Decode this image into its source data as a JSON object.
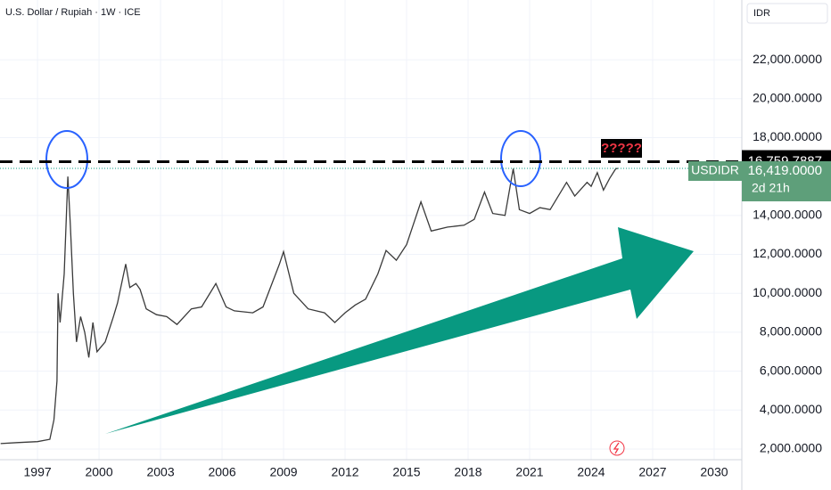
{
  "chart_data": {
    "type": "line",
    "title": "U.S. Dollar / Rupiah · 1W · ICE",
    "currency": "IDR",
    "grid": true,
    "xlim": [
      1995.17,
      2031.35
    ],
    "ylim": [
      1450,
      25070
    ],
    "xticks": [
      1997,
      2000,
      2003,
      2006,
      2009,
      2012,
      2015,
      2018,
      2021,
      2024,
      2027,
      2030
    ],
    "yticks": [
      {
        "value": 2000,
        "label": "2,000.0000"
      },
      {
        "value": 4000,
        "label": "4,000.0000"
      },
      {
        "value": 6000,
        "label": "6,000.0000"
      },
      {
        "value": 8000,
        "label": "8,000.0000"
      },
      {
        "value": 10000,
        "label": "10,000.0000"
      },
      {
        "value": 12000,
        "label": "12,000.0000"
      },
      {
        "value": 14000,
        "label": "14,000.0000"
      },
      {
        "value": 18000,
        "label": "18,000.0000"
      },
      {
        "value": 20000,
        "label": "20,000.0000"
      },
      {
        "value": 22000,
        "label": "22,000.0000"
      }
    ],
    "series": [
      {
        "name": "USDIDR",
        "color": "#3a3a3a",
        "x": [
          1995.2,
          1996,
          1997,
          1997.6,
          1997.8,
          1997.95,
          1998.0,
          1998.1,
          1998.3,
          1998.48,
          1998.6,
          1998.75,
          1998.9,
          1999.1,
          1999.3,
          1999.5,
          1999.7,
          1999.9,
          2000.3,
          2000.7,
          2000.9,
          2001.3,
          2001.5,
          2001.8,
          2002.0,
          2002.3,
          2002.8,
          2003.3,
          2003.8,
          2004.5,
          2005.0,
          2005.7,
          2006.2,
          2006.6,
          2007.5,
          2008.0,
          2008.8,
          2009.0,
          2009.5,
          2010.2,
          2011.0,
          2011.5,
          2012.0,
          2012.5,
          2013.0,
          2013.6,
          2014.0,
          2014.5,
          2015.0,
          2015.7,
          2016.2,
          2017.0,
          2017.8,
          2018.3,
          2018.8,
          2019.2,
          2019.8,
          2020.2,
          2020.5,
          2021.0,
          2021.5,
          2022.0,
          2022.8,
          2023.2,
          2023.8,
          2024.0,
          2024.3,
          2024.6,
          2024.9,
          2025.2,
          2025.3
        ],
        "values": [
          2280,
          2330,
          2380,
          2500,
          3500,
          5500,
          10000,
          8500,
          11000,
          16000,
          13500,
          10000,
          7500,
          8800,
          8000,
          6700,
          8500,
          7000,
          7500,
          8800,
          9500,
          11500,
          10300,
          10500,
          10200,
          9200,
          8900,
          8800,
          8400,
          9200,
          9300,
          10500,
          9300,
          9100,
          9000,
          9300,
          11500,
          12140,
          10000,
          9200,
          9000,
          8500,
          9000,
          9400,
          9700,
          11000,
          12200,
          11700,
          12500,
          14700,
          13200,
          13400,
          13500,
          13800,
          15200,
          14100,
          14000,
          16400,
          14300,
          14100,
          14400,
          14300,
          15700,
          15000,
          15700,
          15500,
          16200,
          15300,
          15900,
          16400,
          16419
        ]
      }
    ],
    "horizontal_line": {
      "value": 16759.7887,
      "label": "16,759.7887"
    },
    "last_price": {
      "symbol": "USDIDR",
      "value": 16419,
      "label": "16,419.0000",
      "countdown": "2d 21h"
    },
    "annotations": [
      "?????"
    ]
  }
}
